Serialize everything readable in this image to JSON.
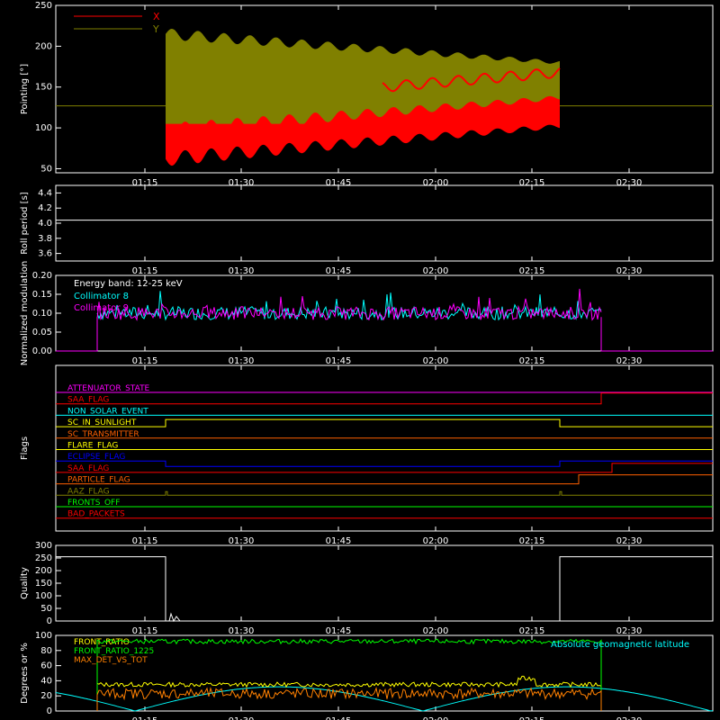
{
  "chart_data": [
    {
      "type": "area",
      "ylabel": "Pointing [°]",
      "yticks": [
        "250",
        "200",
        "150",
        "100",
        "50"
      ],
      "ylim": [
        45,
        250
      ],
      "series": [
        {
          "name": "X",
          "color": "#ff0000"
        },
        {
          "name": "Y",
          "color": "#808000"
        }
      ],
      "reference_level": 127
    },
    {
      "type": "line",
      "ylabel": "Roll period [s]",
      "yticks": [
        "4.4",
        "4.2",
        "4.0",
        "3.8",
        "3.6"
      ],
      "ylim": [
        3.5,
        4.5
      ],
      "value": 4.04,
      "color": "#ffffff"
    },
    {
      "type": "line",
      "ylabel": "Normalized modulation",
      "yticks": [
        "0.20",
        "0.15",
        "0.10",
        "0.05",
        "0.00"
      ],
      "ylim": [
        0,
        0.2
      ],
      "annotation": "Energy band: 12-25 keV",
      "series": [
        {
          "name": "Collimator 8",
          "color": "#00ffff"
        },
        {
          "name": "Collimator 9",
          "color": "#ff00ff"
        }
      ],
      "baseline": 0.0,
      "active_level": 0.09
    },
    {
      "type": "line",
      "ylabel": "Flags",
      "flags": [
        {
          "name": "ATTENUATOR_STATE",
          "color": "#ff00ff"
        },
        {
          "name": "SAA_FLAG",
          "color": "#ff0000"
        },
        {
          "name": "NON_SOLAR_EVENT",
          "color": "#00ffff"
        },
        {
          "name": "SC_IN_SUNLIGHT",
          "color": "#ffff00"
        },
        {
          "name": "SC_TRANSMITTER",
          "color": "#ff6000"
        },
        {
          "name": "FLARE_FLAG",
          "color": "#ffff00"
        },
        {
          "name": "ECLIPSE_FLAG",
          "color": "#0000ff"
        },
        {
          "name": "SAA_FLAG",
          "color": "#ff0000"
        },
        {
          "name": "PARTICLE_FLAG",
          "color": "#ff6000"
        },
        {
          "name": "AAZ_FLAG",
          "color": "#808000"
        },
        {
          "name": "FRONTS_OFF",
          "color": "#00ff00"
        },
        {
          "name": "BAD_PACKETS",
          "color": "#ff0000"
        }
      ]
    },
    {
      "type": "line",
      "ylabel": "Quality",
      "yticks": [
        "300",
        "250",
        "200",
        "150",
        "100",
        "50",
        "0"
      ],
      "ylim": [
        0,
        300
      ],
      "high_value": 255,
      "low_value": 0,
      "color": "#ffffff"
    },
    {
      "type": "line",
      "ylabel": "Degrees or %",
      "yticks": [
        "100",
        "80",
        "60",
        "40",
        "20",
        "0"
      ],
      "ylim": [
        0,
        100
      ],
      "series": [
        {
          "name": "FRONT_RATIO",
          "color": "#ffff00",
          "level": 35
        },
        {
          "name": "FRONT_RATIO_1225",
          "color": "#00ff00",
          "level": 92
        },
        {
          "name": "MAX_DET_VS_TOT",
          "color": "#ff8000",
          "level": 23
        }
      ],
      "latitude_label": "Absolute geomagnetic latitude",
      "latitude_color": "#00ffff"
    }
  ],
  "x_axis": {
    "ticks": [
      "01:15",
      "01:30",
      "01:45",
      "02:00",
      "02:15",
      "02:30"
    ]
  }
}
